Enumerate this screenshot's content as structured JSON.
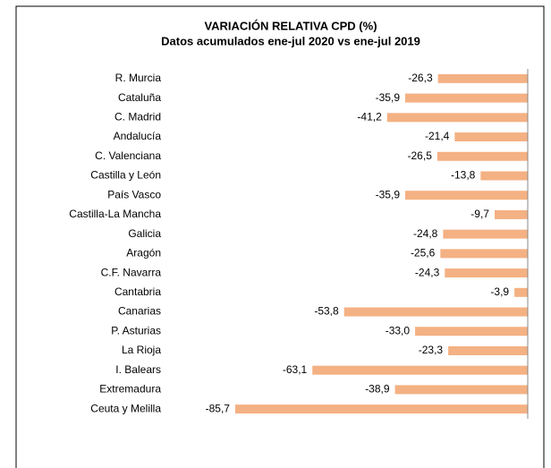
{
  "chart_data": {
    "type": "barh",
    "title": "VARIACIÓN RELATIVA CPD (%)",
    "subtitle": "Datos acumulados ene-jul 2020 vs ene-jul 2019",
    "categories": [
      "R. Murcia",
      "Cataluña",
      "C. Madrid",
      "Andalucía",
      "C. Valenciana",
      "Castilla y León",
      "País Vasco",
      "Castilla-La Mancha",
      "Galicia",
      "Aragón",
      "C.F. Navarra",
      "Cantabria",
      "Canarias",
      "P. Asturias",
      "La Rioja",
      "I. Balears",
      "Extremadura",
      "Ceuta y Melilla"
    ],
    "values": [
      -26.3,
      -35.9,
      -41.2,
      -21.4,
      -26.5,
      -13.8,
      -35.9,
      -9.7,
      -24.8,
      -25.6,
      -24.3,
      -3.9,
      -53.8,
      -33.0,
      -23.3,
      -63.1,
      -38.9,
      -85.7
    ],
    "value_labels": [
      "-26,3",
      "-35,9",
      "-41,2",
      "-21,4",
      "-26,5",
      "-13,8",
      "-35,9",
      "-9,7",
      "-24,8",
      "-25,6",
      "-24,3",
      "-3,9",
      "-53,8",
      "-33,0",
      "-23,3",
      "-63,1",
      "-38,9",
      "-85,7"
    ],
    "color": "#f4b183",
    "xlim": [
      -100,
      0
    ]
  }
}
